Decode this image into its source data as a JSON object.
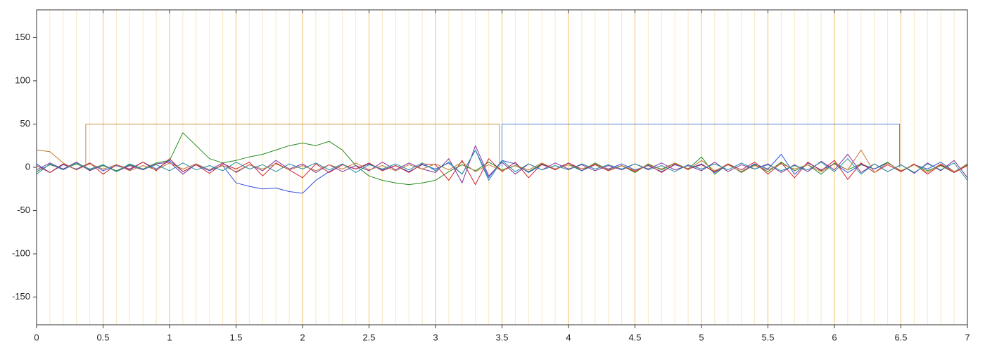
{
  "chart_data": {
    "type": "line",
    "xlim": [
      0,
      7
    ],
    "ylim": [
      -182,
      182
    ],
    "xticks": [
      0,
      0.5,
      1,
      1.5,
      2,
      2.5,
      3,
      3.5,
      4,
      4.5,
      5,
      5.5,
      6,
      6.5,
      7
    ],
    "yticks": [
      -150,
      -100,
      -50,
      0,
      50,
      100,
      150
    ],
    "minor_xticks": [
      0.1,
      0.2,
      0.3,
      0.4,
      0.6,
      0.7,
      0.8,
      0.9,
      1.1,
      1.2,
      1.3,
      1.4,
      1.6,
      1.7,
      1.8,
      1.9,
      2.1,
      2.2,
      2.3,
      2.4,
      2.6,
      2.7,
      2.8,
      2.9,
      3.1,
      3.2,
      3.3,
      3.4,
      3.6,
      3.7,
      3.8,
      3.9,
      4.1,
      4.2,
      4.3,
      4.4,
      4.6,
      4.7,
      4.8,
      4.9,
      5.1,
      5.2,
      5.3,
      5.4,
      5.6,
      5.7,
      5.8,
      5.9,
      6.1,
      6.2,
      6.3,
      6.4,
      6.6,
      6.7,
      6.8,
      6.9
    ],
    "grid": true,
    "grid_color": "#f0b040",
    "x": [
      0,
      0.1,
      0.2,
      0.3,
      0.4,
      0.5,
      0.6,
      0.7,
      0.8,
      0.9,
      1,
      1.1,
      1.2,
      1.3,
      1.4,
      1.5,
      1.6,
      1.7,
      1.8,
      1.9,
      2,
      2.1,
      2.2,
      2.3,
      2.4,
      2.5,
      2.6,
      2.7,
      2.8,
      2.9,
      3,
      3.1,
      3.2,
      3.3,
      3.4,
      3.5,
      3.6,
      3.7,
      3.8,
      3.9,
      4,
      4.1,
      4.2,
      4.3,
      4.4,
      4.5,
      4.6,
      4.7,
      4.8,
      4.9,
      5,
      5.1,
      5.2,
      5.3,
      5.4,
      5.5,
      5.6,
      5.7,
      5.8,
      5.9,
      6,
      6.1,
      6.2,
      6.3,
      6.4,
      6.5,
      6.6,
      6.7,
      6.8,
      6.9,
      7
    ],
    "series": [
      {
        "color": "#228b22",
        "values": [
          -5,
          3,
          -2,
          4,
          -3,
          2,
          -4,
          3,
          -2,
          5,
          8,
          40,
          25,
          10,
          5,
          8,
          12,
          15,
          20,
          25,
          28,
          25,
          30,
          20,
          2,
          -10,
          -15,
          -18,
          -20,
          -18,
          -15,
          -5,
          3,
          -4,
          6,
          -3,
          2,
          -5,
          4,
          -2,
          3,
          -4,
          5,
          -3,
          2,
          -6,
          4,
          -3,
          5,
          -2,
          12,
          -8,
          4,
          -6,
          3,
          -5,
          6,
          -4,
          3,
          -8,
          5,
          -3,
          4,
          -2,
          6,
          -5,
          3,
          -4,
          2,
          -6,
          4
        ]
      },
      {
        "color": "#3050e0",
        "values": [
          4,
          -6,
          3,
          -2,
          5,
          -4,
          2,
          -3,
          6,
          -2,
          8,
          -5,
          3,
          -4,
          2,
          -18,
          -22,
          -25,
          -24,
          -28,
          -30,
          -15,
          -5,
          3,
          -2,
          4,
          -3,
          2,
          -5,
          3,
          -2,
          5,
          -8,
          20,
          -12,
          8,
          4,
          -6,
          3,
          -2,
          5,
          -4,
          3,
          -2,
          4,
          -3,
          2,
          -5,
          3,
          -2,
          4,
          -6,
          3,
          -5,
          4,
          -2,
          15,
          -8,
          5,
          -3,
          4,
          -6,
          3,
          -2,
          5,
          -4,
          3,
          -2,
          6,
          -5,
          2
        ]
      },
      {
        "color": "#d02030",
        "values": [
          2,
          -6,
          4,
          -3,
          5,
          -8,
          3,
          -2,
          6,
          -4,
          10,
          -5,
          3,
          -7,
          4,
          -2,
          6,
          -10,
          5,
          -3,
          -12,
          4,
          -6,
          3,
          -2,
          5,
          -4,
          2,
          -6,
          4,
          3,
          -15,
          8,
          -20,
          10,
          -5,
          6,
          -12,
          4,
          -3,
          5,
          -2,
          3,
          -4,
          2,
          -5,
          3,
          -6,
          4,
          -2,
          3,
          -5,
          4,
          -3,
          6,
          -8,
          5,
          -12,
          6,
          -4,
          8,
          -14,
          5,
          -6,
          3,
          -5,
          4,
          -8,
          3,
          -6,
          2
        ]
      },
      {
        "color": "#8030a0",
        "values": [
          -3,
          5,
          -2,
          6,
          -4,
          3,
          -5,
          2,
          -3,
          4,
          6,
          -8,
          4,
          -3,
          5,
          -6,
          3,
          -4,
          8,
          -2,
          4,
          -6,
          3,
          -5,
          2,
          -4,
          6,
          -3,
          5,
          -2,
          -6,
          10,
          -18,
          25,
          -10,
          6,
          -8,
          4,
          -3,
          5,
          -2,
          3,
          -4,
          2,
          -3,
          4,
          -2,
          5,
          -3,
          2,
          -4,
          6,
          -5,
          3,
          -2,
          4,
          -6,
          3,
          -5,
          7,
          -3,
          15,
          -6,
          4,
          -5,
          3,
          -7,
          5,
          -4,
          8,
          -12
        ]
      },
      {
        "color": "#c07838",
        "values": [
          20,
          18,
          5,
          -3,
          4,
          -2,
          3,
          -4,
          2,
          -3,
          5,
          -2,
          4,
          -3,
          2,
          -5,
          3,
          -2,
          4,
          -3,
          2,
          -4,
          3,
          -2,
          5,
          -3,
          2,
          -4,
          3,
          -2,
          4,
          -3,
          6,
          -5,
          3,
          -4,
          2,
          -3,
          5,
          -2,
          3,
          -2,
          4,
          -3,
          2,
          -4,
          3,
          -2,
          5,
          -3,
          8,
          -4,
          3,
          -5,
          2,
          -3,
          4,
          -2,
          3,
          -5,
          4,
          -3,
          20,
          -6,
          5,
          -4,
          3,
          -6,
          4,
          -5,
          3
        ]
      },
      {
        "color": "#2090a0",
        "values": [
          -8,
          4,
          -3,
          5,
          -2,
          3,
          -5,
          4,
          -2,
          3,
          -4,
          5,
          -3,
          2,
          -4,
          6,
          -2,
          3,
          -5,
          4,
          -2,
          5,
          -3,
          4,
          -6,
          3,
          -2,
          4,
          -3,
          5,
          -4,
          6,
          -8,
          20,
          -15,
          8,
          -5,
          4,
          -3,
          2,
          -3,
          4,
          -2,
          3,
          -2,
          4,
          -3,
          2,
          -5,
          3,
          -2,
          4,
          -3,
          5,
          -2,
          3,
          -4,
          2,
          -3,
          6,
          -5,
          10,
          -8,
          4,
          -5,
          3,
          -6,
          4,
          -3,
          5,
          -15
        ]
      },
      {
        "color": "#c8903a",
        "x": [
          0.37,
          0.37,
          3.48,
          3.48
        ],
        "values": [
          0,
          50,
          50,
          0
        ]
      },
      {
        "color": "#5080d0",
        "x": [
          3.5,
          3.5,
          6.49,
          6.49
        ],
        "values": [
          0,
          50,
          50,
          0
        ]
      }
    ]
  }
}
